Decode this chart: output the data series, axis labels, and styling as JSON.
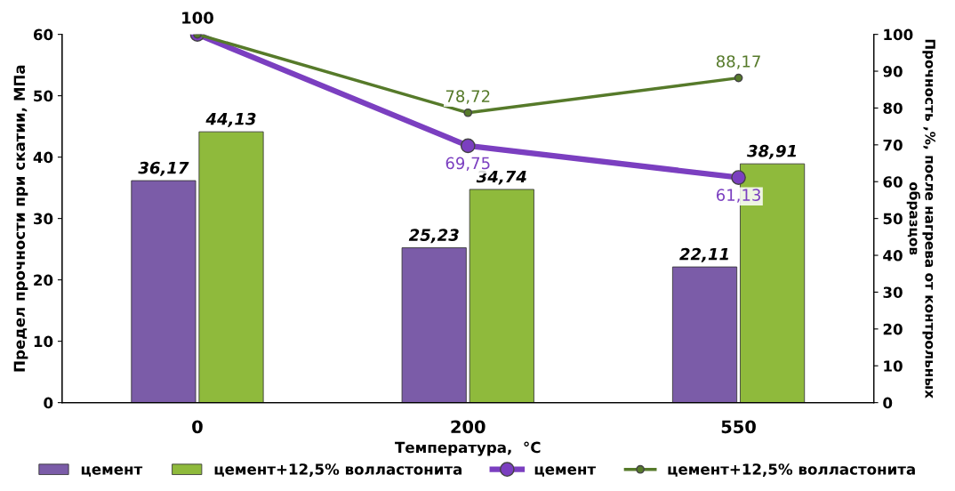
{
  "chart_data": {
    "type": "bar",
    "xlabel": "Температура,  °C",
    "ylabel": "Предел прочности при скатии, МПа",
    "y2label": "Прочность ,%, после нагрева от контрольных образцов",
    "categories": [
      "0",
      "200",
      "550"
    ],
    "ylim": [
      0,
      60
    ],
    "yticks": [
      0,
      10,
      20,
      30,
      40,
      50,
      60
    ],
    "y2lim": [
      0,
      100
    ],
    "y2ticks": [
      0,
      10,
      20,
      30,
      40,
      50,
      60,
      70,
      80,
      90,
      100
    ],
    "grid": false,
    "legend": "bottom",
    "marker": "circle",
    "line_style": "solid",
    "series": [
      {
        "name": "цемент",
        "color": "#7b5ca8",
        "values": [
          36.17,
          25.23,
          22.11
        ],
        "value_labels": [
          "36,17",
          "25,23",
          "22,11"
        ]
      },
      {
        "name": "цемент+12,5% волластонита",
        "color": "#8fba3c",
        "values": [
          44.13,
          34.74,
          38.91
        ],
        "value_labels": [
          "44,13",
          "34,74",
          "38,91"
        ]
      },
      {
        "name": "цемент",
        "type": "line",
        "axis": "y2",
        "color": "#7b3fc0",
        "values": [
          100,
          69.75,
          61.13
        ],
        "value_labels": [
          null,
          "69,75",
          "61,13"
        ]
      },
      {
        "name": "цемент+12,5% волластонита",
        "type": "line",
        "axis": "y2",
        "color": "#567a2a",
        "values": [
          100,
          78.72,
          88.17
        ],
        "value_labels": [
          "100",
          "78,72",
          "88,17"
        ]
      }
    ]
  }
}
